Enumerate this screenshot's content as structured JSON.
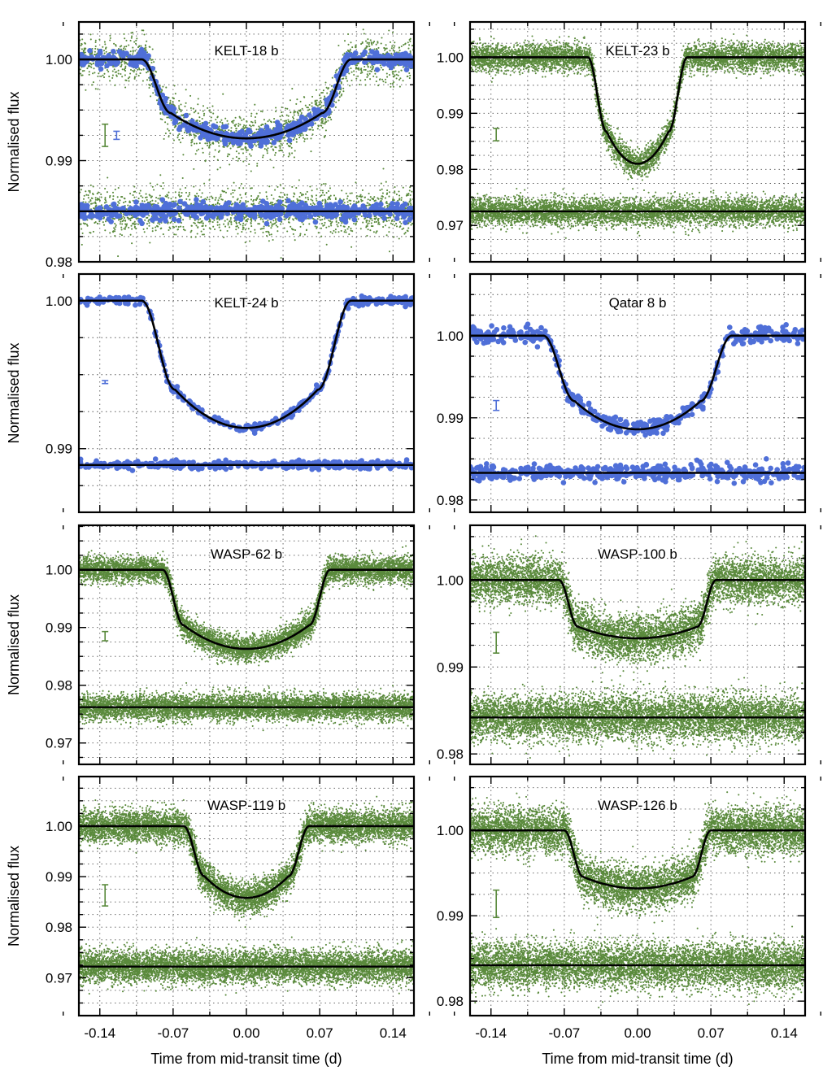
{
  "figure": {
    "ylabel": "Normalised flux",
    "xlabel": "Time from mid-transit time (d)"
  },
  "colors": {
    "green": "#5a8a3c",
    "blue": "#4f6fd8",
    "model": "#000000"
  },
  "chart_data": [
    {
      "type": "scatter",
      "title": "KELT-18 b",
      "xlim": [
        -0.16,
        0.16
      ],
      "ylim": [
        0.98,
        1.0037
      ],
      "yticks": [
        0.98,
        0.99,
        1.0
      ],
      "yticklabels": [
        "0.98",
        "0.99",
        "1.00"
      ],
      "depth": 0.0078,
      "t14": 0.2,
      "t12": 0.028,
      "limb": 0.32,
      "offset": 0.985,
      "series": [
        {
          "color": "green",
          "scatter": 0.0011,
          "count": 1900,
          "style": "dots"
        },
        {
          "color": "blue",
          "scatter": 0.0004,
          "count": 520,
          "style": "large"
        }
      ],
      "errbars": [
        {
          "color": "green",
          "x": -0.135,
          "y": 0.9925,
          "half": 0.0011
        },
        {
          "color": "blue",
          "x": -0.124,
          "y": 0.9925,
          "half": 0.0004
        }
      ]
    },
    {
      "type": "scatter",
      "title": "KELT-23 b",
      "xlim": [
        -0.16,
        0.16
      ],
      "ylim": [
        0.9635,
        1.0063
      ],
      "yticks": [
        0.97,
        0.98,
        0.99,
        1.0
      ],
      "yticklabels": [
        "0.97",
        "0.98",
        "0.99",
        "1.00"
      ],
      "depth": 0.019,
      "t14": 0.095,
      "t12": 0.018,
      "limb": 0.3,
      "offset": 0.9725,
      "series": [
        {
          "color": "green",
          "scatter": 0.0012,
          "count": 6000,
          "style": "dots"
        }
      ],
      "errbars": [
        {
          "color": "green",
          "x": -0.135,
          "y": 0.9862,
          "half": 0.0011
        }
      ]
    },
    {
      "type": "scatter",
      "title": "KELT-24 b",
      "xlim": [
        -0.16,
        0.16
      ],
      "ylim": [
        0.9857,
        1.0018
      ],
      "yticks": [
        0.99,
        1.0
      ],
      "yticklabels": [
        "0.99",
        "1.00"
      ],
      "depth": 0.0086,
      "t14": 0.2,
      "t12": 0.032,
      "limb": 0.3,
      "offset": 0.9889,
      "series": [
        {
          "color": "blue",
          "scatter": 0.00013,
          "count": 380,
          "style": "large"
        }
      ],
      "errbars": [
        {
          "color": "blue",
          "x": -0.135,
          "y": 0.9945,
          "half": 0.0001
        }
      ]
    },
    {
      "type": "scatter",
      "title": "Qatar 8 b",
      "xlim": [
        -0.16,
        0.16
      ],
      "ylim": [
        0.9785,
        1.0075
      ],
      "yticks": [
        0.98,
        0.99,
        1.0
      ],
      "yticklabels": [
        "0.98",
        "0.99",
        "1.00"
      ],
      "depth": 0.0114,
      "t14": 0.18,
      "t12": 0.03,
      "limb": 0.3,
      "offset": 0.9833,
      "series": [
        {
          "color": "blue",
          "scatter": 0.0005,
          "count": 420,
          "style": "large"
        }
      ],
      "errbars": [
        {
          "color": "blue",
          "x": -0.135,
          "y": 0.9915,
          "half": 0.0006
        }
      ]
    },
    {
      "type": "scatter",
      "title": "WASP-62 b",
      "xlim": [
        -0.16,
        0.16
      ],
      "ylim": [
        0.9663,
        1.0077
      ],
      "yticks": [
        0.97,
        0.98,
        0.99,
        1.0
      ],
      "yticklabels": [
        "0.97",
        "0.98",
        "0.99",
        "1.00"
      ],
      "depth": 0.0137,
      "t14": 0.16,
      "t12": 0.02,
      "limb": 0.3,
      "offset": 0.9762,
      "series": [
        {
          "color": "green",
          "scatter": 0.0011,
          "count": 7000,
          "style": "dots"
        }
      ],
      "errbars": [
        {
          "color": "green",
          "x": -0.135,
          "y": 0.9885,
          "half": 0.0008
        }
      ]
    },
    {
      "type": "scatter",
      "title": "WASP-100 b",
      "xlim": [
        -0.16,
        0.16
      ],
      "ylim": [
        0.9788,
        1.0063
      ],
      "yticks": [
        0.98,
        0.99,
        1.0
      ],
      "yticklabels": [
        "0.98",
        "0.99",
        "1.00"
      ],
      "depth": 0.0067,
      "t14": 0.15,
      "t12": 0.018,
      "limb": 0.2,
      "offset": 0.9842,
      "series": [
        {
          "color": "green",
          "scatter": 0.0013,
          "count": 7500,
          "style": "dots"
        }
      ],
      "errbars": [
        {
          "color": "green",
          "x": -0.135,
          "y": 0.9928,
          "half": 0.0012
        }
      ]
    },
    {
      "type": "scatter",
      "title": "WASP-119 b",
      "xlim": [
        -0.16,
        0.16
      ],
      "ylim": [
        0.9625,
        1.0098
      ],
      "yticks": [
        0.97,
        0.98,
        0.99,
        1.0
      ],
      "yticklabels": [
        "0.97",
        "0.98",
        "0.99",
        "1.00"
      ],
      "depth": 0.0142,
      "t14": 0.12,
      "t12": 0.02,
      "limb": 0.3,
      "offset": 0.9722,
      "series": [
        {
          "color": "green",
          "scatter": 0.0016,
          "count": 7500,
          "style": "dots"
        }
      ],
      "errbars": [
        {
          "color": "green",
          "x": -0.135,
          "y": 0.9863,
          "half": 0.0021
        }
      ]
    },
    {
      "type": "scatter",
      "title": "WASP-126 b",
      "xlim": [
        -0.16,
        0.16
      ],
      "ylim": [
        0.9783,
        1.0063
      ],
      "yticks": [
        0.98,
        0.99,
        1.0
      ],
      "yticklabels": [
        "0.98",
        "0.99",
        "1.00"
      ],
      "depth": 0.0068,
      "t14": 0.14,
      "t12": 0.018,
      "limb": 0.2,
      "offset": 0.9842,
      "series": [
        {
          "color": "green",
          "scatter": 0.0013,
          "count": 7500,
          "style": "dots"
        }
      ],
      "errbars": [
        {
          "color": "green",
          "x": -0.135,
          "y": 0.9914,
          "half": 0.0016
        }
      ]
    }
  ],
  "xticks": [
    -0.14,
    -0.07,
    0.0,
    0.07,
    0.14
  ],
  "xticklabels": [
    "-0.14",
    "-0.07",
    "0.00",
    "0.07",
    "0.14"
  ]
}
